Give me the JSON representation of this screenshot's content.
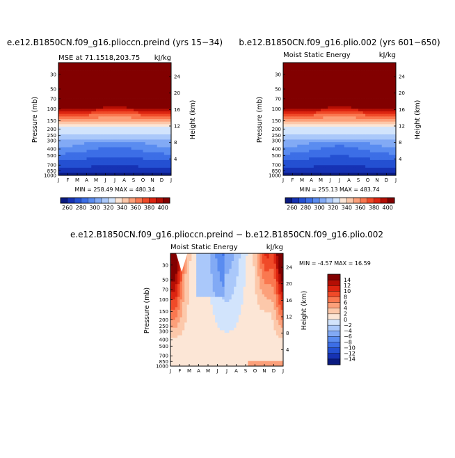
{
  "panels": [
    {
      "title": "e.e12.B1850CN.f09_g16.plioccn.preind  (yrs 15−34)",
      "subtitle_left": "MSE at 71.1518,203.75",
      "units": "kJ/kg",
      "ylabel": "Pressure  (mb)",
      "y2label": "Height  (km)",
      "minmax": "MIN = 258.49  MAX = 480.34"
    },
    {
      "title": "b.e12.B1850CN.f09_g16.plio.002  (yrs 601−650)",
      "subtitle_left": "Moist Static Energy",
      "units": "kJ/kg",
      "ylabel": "Pressure  (mb)",
      "y2label": "Height  (km)",
      "minmax": "MIN = 255.13  MAX = 483.74"
    },
    {
      "title": "e.e12.B1850CN.f09_g16.plioccn.preind − b.e12.B1850CN.f09_g16.plio.002",
      "subtitle_left": "Moist Static Energy",
      "units": "kJ/kg",
      "ylabel": "Pressure  (mb)",
      "y2label": "Height  (km)",
      "minmax": "MIN =   -4.57  MAX =   16.59"
    }
  ],
  "chart_data": [
    {
      "type": "heatmap",
      "title": "e.e12.B1850CN.f09_g16.plioccn.preind  (yrs 15−34)",
      "subtitle": "MSE at 71.1518,203.75",
      "units": "kJ/kg",
      "xlabel": "",
      "ylabel": "Pressure  (mb)",
      "y2label": "Height  (km)",
      "x_ticks": [
        "J",
        "F",
        "M",
        "A",
        "M",
        "J",
        "J",
        "A",
        "S",
        "O",
        "N",
        "D",
        "J"
      ],
      "y_ticks": [
        "30",
        "50",
        "70",
        "100",
        "150",
        "200",
        "250",
        "300",
        "400",
        "500",
        "700",
        "850",
        "1000"
      ],
      "y_log_scale": true,
      "ylim": [
        1000,
        20
      ],
      "y2_ticks": [
        "24",
        "20",
        "16",
        "12",
        "8",
        "4"
      ],
      "levels": [
        260,
        280,
        300,
        320,
        340,
        360,
        380,
        400
      ],
      "colorbar_labels": [
        "260",
        "280",
        "300",
        "320",
        "340",
        "360",
        "380",
        "400"
      ],
      "colormap": [
        "#0a1a80",
        "#1632b4",
        "#2450d2",
        "#3c6ee6",
        "#5a8cf0",
        "#82aaf5",
        "#aac8fa",
        "#d2e4fc",
        "#fce6d6",
        "#fcc8aa",
        "#fca07a",
        "#fa7850",
        "#f04a28",
        "#dc2410",
        "#b40e04",
        "#820000"
      ],
      "minmax": "MIN = 258.49  MAX = 480.34"
    },
    {
      "type": "heatmap",
      "title": "b.e12.B1850CN.f09_g16.plio.002  (yrs 601−650)",
      "subtitle": "Moist Static Energy",
      "units": "kJ/kg",
      "xlabel": "",
      "ylabel": "Pressure  (mb)",
      "y2label": "Height  (km)",
      "x_ticks": [
        "J",
        "F",
        "M",
        "A",
        "M",
        "J",
        "J",
        "A",
        "S",
        "O",
        "N",
        "D",
        "J"
      ],
      "y_ticks": [
        "30",
        "50",
        "70",
        "100",
        "150",
        "200",
        "250",
        "300",
        "400",
        "500",
        "700",
        "850",
        "1000"
      ],
      "y_log_scale": true,
      "ylim": [
        1000,
        20
      ],
      "y2_ticks": [
        "24",
        "20",
        "16",
        "12",
        "8",
        "4"
      ],
      "levels": [
        260,
        280,
        300,
        320,
        340,
        360,
        380,
        400
      ],
      "colorbar_labels": [
        "260",
        "280",
        "300",
        "320",
        "340",
        "360",
        "380",
        "400"
      ],
      "colormap": [
        "#0a1a80",
        "#1632b4",
        "#2450d2",
        "#3c6ee6",
        "#5a8cf0",
        "#82aaf5",
        "#aac8fa",
        "#d2e4fc",
        "#fce6d6",
        "#fcc8aa",
        "#fca07a",
        "#fa7850",
        "#f04a28",
        "#dc2410",
        "#b40e04",
        "#820000"
      ],
      "minmax": "MIN = 255.13  MAX = 483.74"
    },
    {
      "type": "heatmap",
      "title": "e.e12.B1850CN.f09_g16.plioccn.preind − b.e12.B1850CN.f09_g16.plio.002",
      "subtitle": "Moist Static Energy",
      "units": "kJ/kg",
      "xlabel": "",
      "ylabel": "Pressure  (mb)",
      "y2label": "Height  (km)",
      "x_ticks": [
        "J",
        "F",
        "M",
        "A",
        "M",
        "J",
        "J",
        "A",
        "S",
        "O",
        "N",
        "D",
        "J"
      ],
      "y_ticks": [
        "30",
        "50",
        "70",
        "100",
        "150",
        "200",
        "250",
        "300",
        "400",
        "500",
        "700",
        "850",
        "1000"
      ],
      "y_log_scale": true,
      "ylim": [
        1000,
        20
      ],
      "y2_ticks": [
        "24",
        "20",
        "16",
        "12",
        "8",
        "4"
      ],
      "levels": [
        -14,
        -12,
        -10,
        -8,
        -6,
        -4,
        -2,
        0,
        2,
        4,
        6,
        8,
        10,
        12,
        14
      ],
      "colorbar_labels": [
        "14",
        "12",
        "10",
        "8",
        "6",
        "4",
        "2",
        "0",
        "−2",
        "−4",
        "−6",
        "−8",
        "−10",
        "−12",
        "−14"
      ],
      "colormap": [
        "#0a1a80",
        "#1632b4",
        "#2450d2",
        "#3c6ee6",
        "#5a8cf0",
        "#82aaf5",
        "#aac8fa",
        "#d2e4fc",
        "#fce6d6",
        "#fcc8aa",
        "#fca07a",
        "#fa7850",
        "#f04a28",
        "#dc2410",
        "#b40e04",
        "#820000"
      ],
      "minmax": "MIN =   -4.57  MAX =   16.59"
    }
  ]
}
